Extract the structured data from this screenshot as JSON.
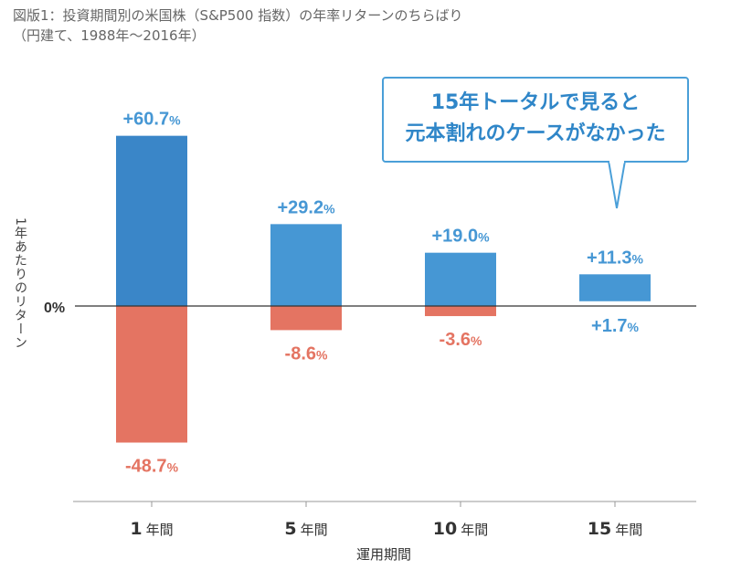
{
  "title_line1": "図版1：投資期間別の米国株（S&P500 指数）の年率リターンのちらばり",
  "title_line2": "（円建て、1988年〜2016年）",
  "callout": {
    "line1": "15年トータルで見ると",
    "line2": "元本割れのケースがなかった"
  },
  "colors": {
    "positive": "#4697d4",
    "positive_first": "#3a86c8",
    "negative": "#e47462",
    "axis": "#333333"
  },
  "chart_data": {
    "type": "bar",
    "title": "図版1：投資期間別の米国株（S&P500 指数）の年率リターンのちらばり",
    "subtitle": "（円建て、1988年〜2016年）",
    "xlabel": "運用期間",
    "ylabel": "1年あたりのリターン",
    "zero_label": "0%",
    "categories": [
      "1年間",
      "5年間",
      "10年間",
      "15年間"
    ],
    "series": [
      {
        "values_max": [
          60.7,
          29.2,
          19.0,
          11.3
        ],
        "labels_max": [
          "+60.7%",
          "+29.2%",
          "+19.0%",
          "+11.3%"
        ]
      },
      {
        "values_min": [
          -48.7,
          -8.6,
          -3.6,
          1.7
        ],
        "labels_min": [
          "-48.7%",
          "-8.6%",
          "-3.6%",
          "+1.7%"
        ]
      }
    ],
    "ylim": [
      -60,
      70
    ],
    "grid": false
  }
}
